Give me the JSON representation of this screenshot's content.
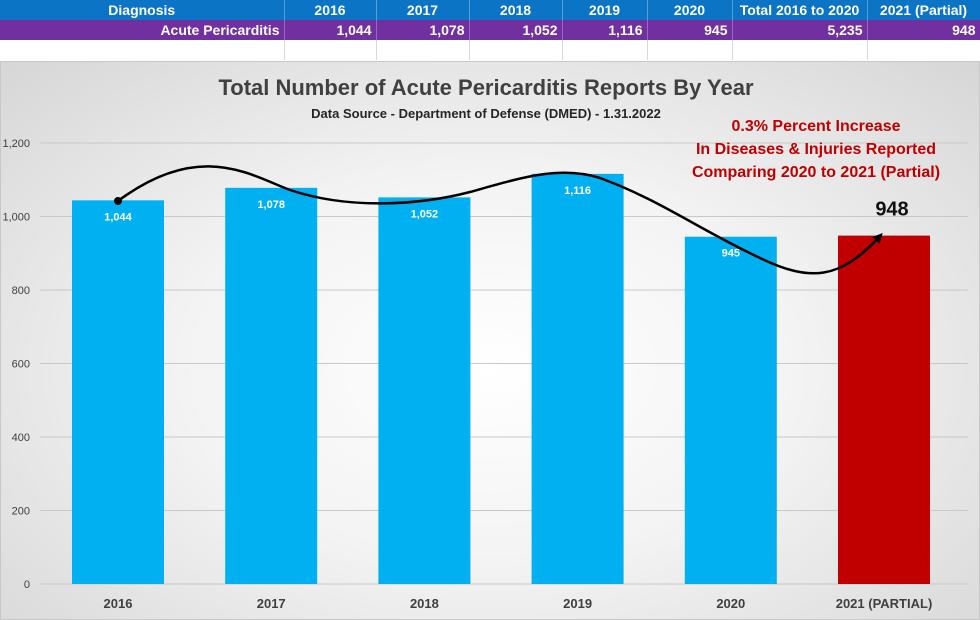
{
  "table": {
    "headers": [
      "Diagnosis",
      "2016",
      "2017",
      "2018",
      "2019",
      "2020",
      "Total 2016 to 2020",
      "2021 (Partial)"
    ],
    "row": [
      "Acute Pericarditis",
      "1,044",
      "1,078",
      "1,052",
      "1,116",
      "945",
      "5,235",
      "948"
    ]
  },
  "chart_data": {
    "type": "bar",
    "title": "Total Number of Acute Pericarditis Reports By Year",
    "subtitle": "Data Source - Department of Defense (DMED) - 1.31.2022",
    "categories": [
      "2016",
      "2017",
      "2018",
      "2019",
      "2020",
      "2021 (PARTIAL)"
    ],
    "values": [
      1044,
      1078,
      1052,
      1116,
      945,
      948
    ],
    "data_labels": [
      "1,044",
      "1,078",
      "1,052",
      "1,116",
      "945",
      "948"
    ],
    "colors": [
      "#00b0f0",
      "#00b0f0",
      "#00b0f0",
      "#00b0f0",
      "#00b0f0",
      "#c00000"
    ],
    "ylim": [
      0,
      1200
    ],
    "yticks": [
      0,
      200,
      400,
      600,
      800,
      1000,
      1200
    ],
    "ytick_labels": [
      "0",
      "200",
      "400",
      "600",
      "800",
      "1,000",
      "1,200"
    ],
    "grid": true,
    "annotation": {
      "lines": [
        "0.3% Percent Increase",
        "In Diseases & Injuries Reported",
        "Comparing 2020 to 2021 (Partial)"
      ],
      "color": "#c00000"
    }
  }
}
